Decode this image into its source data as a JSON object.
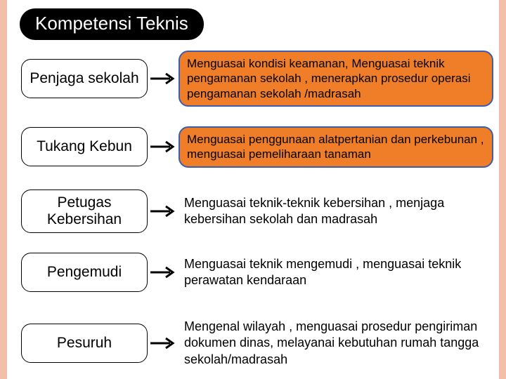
{
  "colors": {
    "edge_bar": "#f4bfa8",
    "title_bg": "#000000",
    "title_text": "#ffffff",
    "left_border": "#000000",
    "desc_bg": "#f07e28",
    "desc_border": "#3a5ea8",
    "arrow": "#000000"
  },
  "layout": {
    "title_fontsize": 26,
    "left_fontsize": 21,
    "right_fontsize": 17,
    "left_border_width": 1.5,
    "desc_border_width": 2,
    "row_tops": [
      72,
      180,
      270,
      360,
      450
    ]
  },
  "title": "Kompetensi Teknis",
  "rows": [
    {
      "role": "Penjaga sekolah",
      "desc": "Menguasai kondisi keamanan, Menguasai teknik pengamanan sekolah , menerapkan prosedur operasi pengamanan sekolah /madrasah",
      "boxed": true
    },
    {
      "role": "Tukang Kebun",
      "desc": "Menguasai penggunaan alatpertanian dan perkebunan , menguasai pemeliharaan tanaman",
      "boxed": true
    },
    {
      "role": "Petugas Kebersihan",
      "desc": "Menguasai teknik-teknik kebersihan , menjaga kebersihan sekolah dan madrasah",
      "boxed": false
    },
    {
      "role": "Pengemudi",
      "desc": "Menguasai teknik mengemudi , menguasai teknik perawatan kendaraan",
      "boxed": false
    },
    {
      "role": "Pesuruh",
      "desc": "Mengenal wilayah , menguasai prosedur pengiriman dokumen dinas, melayanai kebutuhan rumah tangga sekolah/madrasah",
      "boxed": false
    }
  ]
}
